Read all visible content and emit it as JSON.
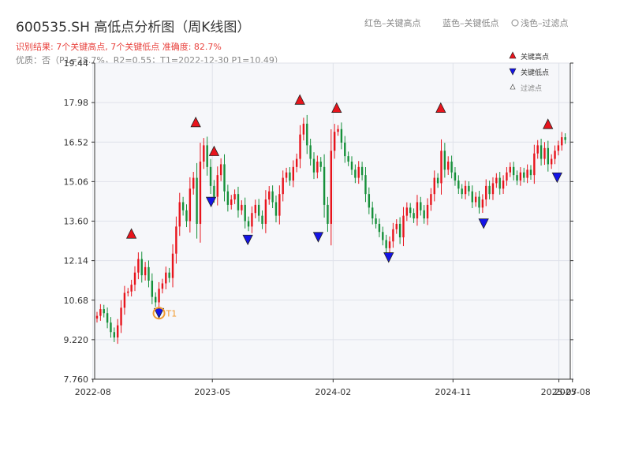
{
  "chart_data": {
    "type": "candlestick",
    "title": "600535.SH 高低点分析图（周K线图）",
    "subtitle_result": "识别结果: 7个关键高点, 7个关键低点  准确度: 82.7%",
    "subtitle_quality": "优质：否（P1=28.7%，R2=0.55；T1=2022-12-30 P1=10.49）",
    "top_legend": {
      "red": "红色–关键高点",
      "blue": "蓝色–关键低点",
      "gray": "浅色–过滤点"
    },
    "legend": {
      "high": "关键高点",
      "low": "关键低点",
      "filtered": "过滤点"
    },
    "y_ticks": [
      "19.44",
      "17.98",
      "16.52",
      "15.06",
      "13.60",
      "12.14",
      "10.68",
      "9.220",
      "7.760"
    ],
    "ylim": [
      7.76,
      19.44
    ],
    "x_ticks": [
      "2022-08",
      "2023-05",
      "2024-02",
      "2024-11",
      "2025-07",
      "2025-08"
    ],
    "t1_label": "T1",
    "key_highs": [
      {
        "date": "2022-10-28",
        "price": 12.85
      },
      {
        "date": "2023-03-24",
        "price": 16.97
      },
      {
        "date": "2023-05-05",
        "price": 15.9
      },
      {
        "date": "2023-11-17",
        "price": 17.8
      },
      {
        "date": "2024-02-09",
        "price": 17.5
      },
      {
        "date": "2024-10-04",
        "price": 17.5
      },
      {
        "date": "2025-06-06",
        "price": 16.9
      }
    ],
    "key_lows": [
      {
        "date": "2022-12-30",
        "price": 10.49
      },
      {
        "date": "2023-04-28",
        "price": 14.6
      },
      {
        "date": "2023-07-21",
        "price": 13.2
      },
      {
        "date": "2023-12-29",
        "price": 13.3
      },
      {
        "date": "2024-06-07",
        "price": 12.55
      },
      {
        "date": "2025-01-10",
        "price": 13.8
      },
      {
        "date": "2025-06-27",
        "price": 15.5
      }
    ],
    "closes": [
      10.1,
      10.35,
      10.2,
      9.85,
      9.5,
      9.3,
      9.75,
      10.4,
      10.95,
      11.0,
      11.25,
      11.7,
      12.2,
      11.6,
      11.9,
      11.4,
      10.8,
      10.6,
      11.1,
      11.3,
      11.7,
      11.5,
      12.4,
      13.4,
      14.3,
      14.0,
      13.6,
      14.8,
      15.2,
      13.5,
      15.8,
      16.4,
      15.6,
      14.9,
      14.5,
      15.3,
      15.7,
      14.7,
      14.2,
      14.4,
      14.6,
      14.0,
      14.2,
      13.6,
      13.4,
      13.9,
      14.2,
      13.8,
      13.5,
      14.4,
      14.7,
      14.3,
      13.8,
      14.6,
      15.2,
      15.4,
      15.1,
      15.6,
      15.9,
      16.8,
      17.2,
      16.4,
      15.9,
      15.4,
      15.8,
      15.6,
      14.2,
      13.5,
      16.2,
      16.9,
      17.0,
      16.5,
      16.0,
      15.8,
      15.5,
      15.2,
      15.6,
      15.3,
      14.6,
      14.1,
      13.7,
      13.5,
      13.2,
      12.9,
      12.6,
      12.85,
      13.3,
      13.5,
      13.0,
      13.8,
      14.1,
      13.9,
      13.7,
      14.3,
      14.0,
      13.7,
      14.2,
      14.6,
      15.2,
      15.0,
      16.2,
      15.5,
      15.8,
      15.4,
      15.1,
      14.8,
      14.6,
      14.9,
      14.7,
      14.3,
      14.5,
      14.1,
      14.4,
      14.9,
      14.6,
      15.0,
      15.2,
      14.8,
      15.1,
      15.4,
      15.6,
      15.3,
      15.1,
      15.4,
      15.2,
      15.5,
      15.3,
      16.1,
      16.4,
      15.9,
      16.3,
      15.7,
      15.9,
      16.2,
      16.4,
      16.7,
      16.6
    ]
  }
}
